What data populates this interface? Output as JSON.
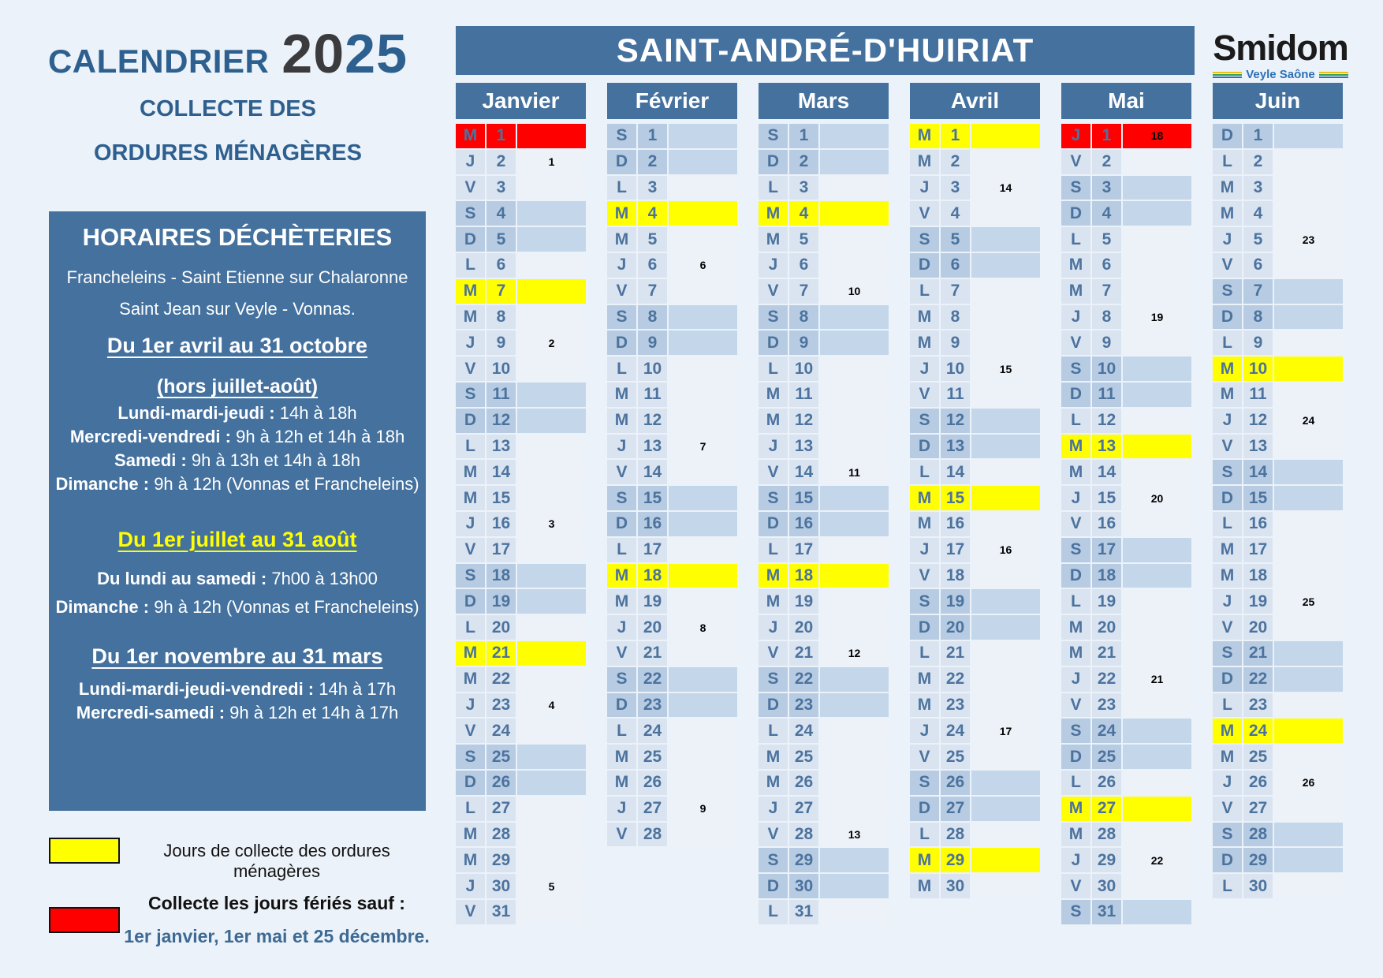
{
  "page": {
    "title_label": "CALENDRIER",
    "title_year_gray": "20",
    "title_year_blue": "25",
    "subtitle_line1": "COLLECTE DES",
    "subtitle_line2": "ORDURES MÉNAGÈRES"
  },
  "banner": {
    "commune": "SAINT-ANDRÉ-D'HUIRIAT"
  },
  "logo": {
    "name": "Smidom",
    "subtitle": "Veyle Saône"
  },
  "horaires": {
    "title": "HORAIRES DÉCHÈTERIES",
    "sites_line1": "Francheleins - Saint Etienne sur Chalaronne",
    "sites_line2": "Saint Jean sur Veyle - Vonnas.",
    "periode1": {
      "heading": "Du 1er avril au 31 octobre",
      "subheading": "(hors juillet-août)",
      "lines": [
        {
          "label": "Lundi-mardi-jeudi",
          "value": "14h à 18h"
        },
        {
          "label": "Mercredi-vendredi",
          "value": "9h à 12h et 14h à 18h"
        },
        {
          "label": "Samedi",
          "value": "9h à 13h et 14h à 18h"
        },
        {
          "label": "Dimanche",
          "value": "9h à 12h (Vonnas et Francheleins)"
        }
      ]
    },
    "periode2": {
      "heading": "Du 1er juillet au 31 août",
      "lines": [
        {
          "label": "Du lundi au samedi",
          "value": "7h00 à 13h00"
        },
        {
          "label": "Dimanche",
          "value": "9h à 12h (Vonnas et Francheleins)"
        }
      ]
    },
    "periode3": {
      "heading": "Du 1er novembre au 31 mars",
      "lines": [
        {
          "label": "Lundi-mardi-jeudi-vendredi",
          "value": "14h à 17h"
        },
        {
          "label": "Mercredi-samedi",
          "value": "9h à 12h et 14h à 17h"
        }
      ]
    }
  },
  "legend": {
    "yellow_label": "Jours de collecte des ordures ménagères",
    "red_label_bold": "Collecte les jours fériés sauf :",
    "red_label_blue": "1er janvier, 1er mai et 25 décembre."
  },
  "colors": {
    "header_blue": "#44719E",
    "weekday_cell": "#DAE4F1",
    "weekday_week_cell": "#EDF2F9",
    "weekend_cell": "#B7CCE3",
    "weekend_week_cell": "#C4D6EA",
    "collecte_yellow": "#FFFF00",
    "ferie_red": "#FF0000",
    "day_text": "#4C739E"
  },
  "calendar": {
    "year": "2025",
    "months": [
      {
        "name": "Janvier",
        "days": [
          {
            "d": "M",
            "n": 1,
            "h": "r"
          },
          {
            "d": "J",
            "n": 2,
            "w": "1"
          },
          {
            "d": "V",
            "n": 3
          },
          {
            "d": "S",
            "n": 4
          },
          {
            "d": "D",
            "n": 5
          },
          {
            "d": "L",
            "n": 6
          },
          {
            "d": "M",
            "n": 7,
            "h": "y"
          },
          {
            "d": "M",
            "n": 8
          },
          {
            "d": "J",
            "n": 9,
            "w": "2"
          },
          {
            "d": "V",
            "n": 10
          },
          {
            "d": "S",
            "n": 11
          },
          {
            "d": "D",
            "n": 12
          },
          {
            "d": "L",
            "n": 13
          },
          {
            "d": "M",
            "n": 14
          },
          {
            "d": "M",
            "n": 15
          },
          {
            "d": "J",
            "n": 16,
            "w": "3"
          },
          {
            "d": "V",
            "n": 17
          },
          {
            "d": "S",
            "n": 18
          },
          {
            "d": "D",
            "n": 19
          },
          {
            "d": "L",
            "n": 20
          },
          {
            "d": "M",
            "n": 21,
            "h": "y"
          },
          {
            "d": "M",
            "n": 22
          },
          {
            "d": "J",
            "n": 23,
            "w": "4"
          },
          {
            "d": "V",
            "n": 24
          },
          {
            "d": "S",
            "n": 25
          },
          {
            "d": "D",
            "n": 26
          },
          {
            "d": "L",
            "n": 27
          },
          {
            "d": "M",
            "n": 28
          },
          {
            "d": "M",
            "n": 29
          },
          {
            "d": "J",
            "n": 30,
            "w": "5"
          },
          {
            "d": "V",
            "n": 31
          }
        ]
      },
      {
        "name": "Février",
        "days": [
          {
            "d": "S",
            "n": 1
          },
          {
            "d": "D",
            "n": 2
          },
          {
            "d": "L",
            "n": 3
          },
          {
            "d": "M",
            "n": 4,
            "h": "y"
          },
          {
            "d": "M",
            "n": 5
          },
          {
            "d": "J",
            "n": 6,
            "w": "6"
          },
          {
            "d": "V",
            "n": 7
          },
          {
            "d": "S",
            "n": 8
          },
          {
            "d": "D",
            "n": 9
          },
          {
            "d": "L",
            "n": 10
          },
          {
            "d": "M",
            "n": 11
          },
          {
            "d": "M",
            "n": 12
          },
          {
            "d": "J",
            "n": 13,
            "w": "7"
          },
          {
            "d": "V",
            "n": 14
          },
          {
            "d": "S",
            "n": 15
          },
          {
            "d": "D",
            "n": 16
          },
          {
            "d": "L",
            "n": 17
          },
          {
            "d": "M",
            "n": 18,
            "h": "y"
          },
          {
            "d": "M",
            "n": 19
          },
          {
            "d": "J",
            "n": 20,
            "w": "8"
          },
          {
            "d": "V",
            "n": 21
          },
          {
            "d": "S",
            "n": 22
          },
          {
            "d": "D",
            "n": 23
          },
          {
            "d": "L",
            "n": 24
          },
          {
            "d": "M",
            "n": 25
          },
          {
            "d": "M",
            "n": 26
          },
          {
            "d": "J",
            "n": 27,
            "w": "9"
          },
          {
            "d": "V",
            "n": 28
          }
        ]
      },
      {
        "name": "Mars",
        "days": [
          {
            "d": "S",
            "n": 1
          },
          {
            "d": "D",
            "n": 2
          },
          {
            "d": "L",
            "n": 3
          },
          {
            "d": "M",
            "n": 4,
            "h": "y"
          },
          {
            "d": "M",
            "n": 5
          },
          {
            "d": "J",
            "n": 6
          },
          {
            "d": "V",
            "n": 7,
            "w": "10"
          },
          {
            "d": "S",
            "n": 8
          },
          {
            "d": "D",
            "n": 9
          },
          {
            "d": "L",
            "n": 10
          },
          {
            "d": "M",
            "n": 11
          },
          {
            "d": "M",
            "n": 12
          },
          {
            "d": "J",
            "n": 13
          },
          {
            "d": "V",
            "n": 14,
            "w": "11"
          },
          {
            "d": "S",
            "n": 15
          },
          {
            "d": "D",
            "n": 16
          },
          {
            "d": "L",
            "n": 17
          },
          {
            "d": "M",
            "n": 18,
            "h": "y"
          },
          {
            "d": "M",
            "n": 19
          },
          {
            "d": "J",
            "n": 20
          },
          {
            "d": "V",
            "n": 21,
            "w": "12"
          },
          {
            "d": "S",
            "n": 22
          },
          {
            "d": "D",
            "n": 23
          },
          {
            "d": "L",
            "n": 24
          },
          {
            "d": "M",
            "n": 25
          },
          {
            "d": "M",
            "n": 26
          },
          {
            "d": "J",
            "n": 27
          },
          {
            "d": "V",
            "n": 28,
            "w": "13"
          },
          {
            "d": "S",
            "n": 29
          },
          {
            "d": "D",
            "n": 30
          },
          {
            "d": "L",
            "n": 31
          }
        ]
      },
      {
        "name": "Avril",
        "days": [
          {
            "d": "M",
            "n": 1,
            "h": "y"
          },
          {
            "d": "M",
            "n": 2
          },
          {
            "d": "J",
            "n": 3,
            "w": "14"
          },
          {
            "d": "V",
            "n": 4
          },
          {
            "d": "S",
            "n": 5
          },
          {
            "d": "D",
            "n": 6
          },
          {
            "d": "L",
            "n": 7
          },
          {
            "d": "M",
            "n": 8
          },
          {
            "d": "M",
            "n": 9
          },
          {
            "d": "J",
            "n": 10,
            "w": "15"
          },
          {
            "d": "V",
            "n": 11
          },
          {
            "d": "S",
            "n": 12
          },
          {
            "d": "D",
            "n": 13
          },
          {
            "d": "L",
            "n": 14
          },
          {
            "d": "M",
            "n": 15,
            "h": "y"
          },
          {
            "d": "M",
            "n": 16
          },
          {
            "d": "J",
            "n": 17,
            "w": "16"
          },
          {
            "d": "V",
            "n": 18
          },
          {
            "d": "S",
            "n": 19
          },
          {
            "d": "D",
            "n": 20
          },
          {
            "d": "L",
            "n": 21
          },
          {
            "d": "M",
            "n": 22
          },
          {
            "d": "M",
            "n": 23
          },
          {
            "d": "J",
            "n": 24,
            "w": "17"
          },
          {
            "d": "V",
            "n": 25
          },
          {
            "d": "S",
            "n": 26
          },
          {
            "d": "D",
            "n": 27
          },
          {
            "d": "L",
            "n": 28
          },
          {
            "d": "M",
            "n": 29,
            "h": "y"
          },
          {
            "d": "M",
            "n": 30
          }
        ]
      },
      {
        "name": "Mai",
        "days": [
          {
            "d": "J",
            "n": 1,
            "h": "r",
            "w": "18"
          },
          {
            "d": "V",
            "n": 2
          },
          {
            "d": "S",
            "n": 3
          },
          {
            "d": "D",
            "n": 4
          },
          {
            "d": "L",
            "n": 5
          },
          {
            "d": "M",
            "n": 6
          },
          {
            "d": "M",
            "n": 7
          },
          {
            "d": "J",
            "n": 8,
            "w": "19"
          },
          {
            "d": "V",
            "n": 9
          },
          {
            "d": "S",
            "n": 10
          },
          {
            "d": "D",
            "n": 11
          },
          {
            "d": "L",
            "n": 12
          },
          {
            "d": "M",
            "n": 13,
            "h": "y"
          },
          {
            "d": "M",
            "n": 14
          },
          {
            "d": "J",
            "n": 15,
            "w": "20"
          },
          {
            "d": "V",
            "n": 16
          },
          {
            "d": "S",
            "n": 17
          },
          {
            "d": "D",
            "n": 18
          },
          {
            "d": "L",
            "n": 19
          },
          {
            "d": "M",
            "n": 20
          },
          {
            "d": "M",
            "n": 21
          },
          {
            "d": "J",
            "n": 22,
            "w": "21"
          },
          {
            "d": "V",
            "n": 23
          },
          {
            "d": "S",
            "n": 24
          },
          {
            "d": "D",
            "n": 25
          },
          {
            "d": "L",
            "n": 26
          },
          {
            "d": "M",
            "n": 27,
            "h": "y"
          },
          {
            "d": "M",
            "n": 28
          },
          {
            "d": "J",
            "n": 29,
            "w": "22"
          },
          {
            "d": "V",
            "n": 30
          },
          {
            "d": "S",
            "n": 31
          }
        ]
      },
      {
        "name": "Juin",
        "days": [
          {
            "d": "D",
            "n": 1
          },
          {
            "d": "L",
            "n": 2
          },
          {
            "d": "M",
            "n": 3
          },
          {
            "d": "M",
            "n": 4
          },
          {
            "d": "J",
            "n": 5,
            "w": "23"
          },
          {
            "d": "V",
            "n": 6
          },
          {
            "d": "S",
            "n": 7
          },
          {
            "d": "D",
            "n": 8
          },
          {
            "d": "L",
            "n": 9
          },
          {
            "d": "M",
            "n": 10,
            "h": "y"
          },
          {
            "d": "M",
            "n": 11
          },
          {
            "d": "J",
            "n": 12,
            "w": "24"
          },
          {
            "d": "V",
            "n": 13
          },
          {
            "d": "S",
            "n": 14
          },
          {
            "d": "D",
            "n": 15
          },
          {
            "d": "L",
            "n": 16
          },
          {
            "d": "M",
            "n": 17
          },
          {
            "d": "M",
            "n": 18
          },
          {
            "d": "J",
            "n": 19,
            "w": "25"
          },
          {
            "d": "V",
            "n": 20
          },
          {
            "d": "S",
            "n": 21
          },
          {
            "d": "D",
            "n": 22
          },
          {
            "d": "L",
            "n": 23
          },
          {
            "d": "M",
            "n": 24,
            "h": "y"
          },
          {
            "d": "M",
            "n": 25
          },
          {
            "d": "J",
            "n": 26,
            "w": "26"
          },
          {
            "d": "V",
            "n": 27
          },
          {
            "d": "S",
            "n": 28
          },
          {
            "d": "D",
            "n": 29
          },
          {
            "d": "L",
            "n": 30
          }
        ]
      }
    ]
  }
}
